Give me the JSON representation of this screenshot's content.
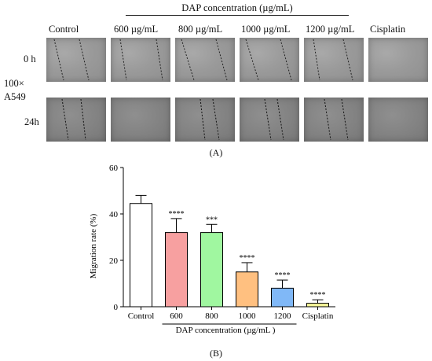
{
  "panel_a": {
    "header": "DAP concentration (µg/mL)",
    "columns": [
      "Control",
      "600 µg/mL",
      "800 µg/mL",
      "1000 µg/mL",
      "1200 µg/mL",
      "Cisplatin"
    ],
    "rows": [
      "0 h",
      "24h"
    ],
    "side_label_line1": "100×",
    "side_label_line2": "A549",
    "panel_label": "(A)"
  },
  "panel_b": {
    "panel_label": "(B)"
  },
  "chart_data": {
    "type": "bar",
    "categories": [
      "Control",
      "600",
      "800",
      "1000",
      "1200",
      "Cisplatin"
    ],
    "values": [
      44.5,
      32,
      32,
      15,
      8,
      1.5
    ],
    "errors": [
      3.5,
      6,
      3.5,
      4,
      3.5,
      1.5
    ],
    "significance": [
      "",
      "****",
      "***",
      "****",
      "****",
      "****"
    ],
    "bar_colors": [
      "#ffffff",
      "#f7a0a0",
      "#a0f7a0",
      "#ffc080",
      "#80b8f7",
      "#f7f79a"
    ],
    "ylabel": "Migration rate (%)",
    "xlabel": "DAP concentration (µg/mL )",
    "ylim": [
      0,
      60
    ],
    "yticks": [
      0,
      20,
      40,
      60
    ],
    "grid": false
  }
}
